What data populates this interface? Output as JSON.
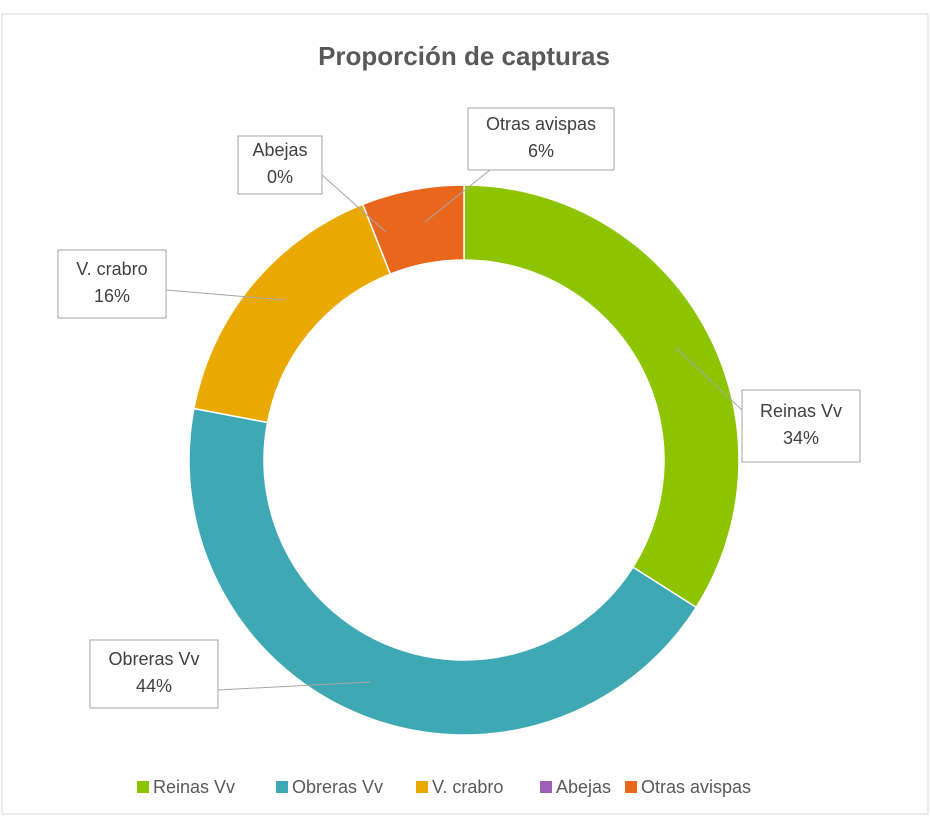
{
  "chart_data": {
    "type": "donut",
    "title": "Proporción de capturas",
    "categories": [
      "Reinas Vv",
      "Obreras Vv",
      "V. crabro",
      "Abejas",
      "Otras avispas"
    ],
    "values": [
      34,
      44,
      16,
      0,
      6
    ],
    "value_labels": [
      "34%",
      "44%",
      "16%",
      "0%",
      "6%"
    ],
    "colors": [
      "#8cc400",
      "#3ea9b5",
      "#e9a900",
      "#9e5fb8",
      "#e9661d"
    ],
    "legend": "bottom"
  }
}
